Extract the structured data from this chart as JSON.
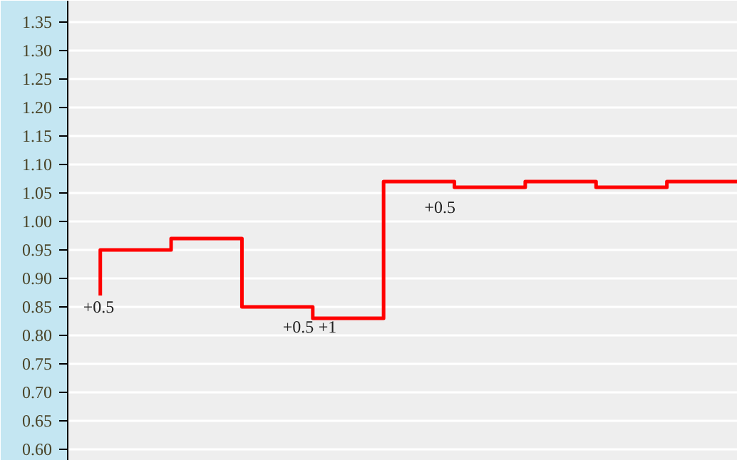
{
  "chart_data": {
    "type": "step",
    "categories": [
      null,
      null,
      null,
      null,
      null,
      null,
      null,
      null,
      null,
      null
    ],
    "series": [
      {
        "color": "#ff0000",
        "values": [
          0.87,
          0.95,
          0.97,
          0.85,
          0.83,
          1.07,
          1.06,
          1.07,
          1.06,
          1.07
        ]
      }
    ],
    "ylim": [
      0.58,
      1.3875
    ],
    "yticks": [
      {
        "value": 0.6,
        "label": "0.60"
      },
      {
        "value": 0.65,
        "label": "0.65"
      },
      {
        "value": 0.7,
        "label": "0.70"
      },
      {
        "value": 0.75,
        "label": "0.75"
      },
      {
        "value": 0.8,
        "label": "0.80"
      },
      {
        "value": 0.85,
        "label": "0.85"
      },
      {
        "value": 0.9,
        "label": "0.90"
      },
      {
        "value": 0.95,
        "label": "0.95"
      },
      {
        "value": 1.0,
        "label": "1.00"
      },
      {
        "value": 1.05,
        "label": "1.05"
      },
      {
        "value": 1.1,
        "label": "1.10"
      },
      {
        "value": 1.15,
        "label": "1.15"
      },
      {
        "value": 1.2,
        "label": "1.20"
      },
      {
        "value": 1.25,
        "label": "1.25"
      },
      {
        "value": 1.3,
        "label": "1.30"
      },
      {
        "value": 1.35,
        "label": "1.35"
      }
    ],
    "grid": "y",
    "tick_labels": "y",
    "annotations": [
      "+0.5",
      "+0.5",
      "+1",
      "+0.5"
    ]
  }
}
